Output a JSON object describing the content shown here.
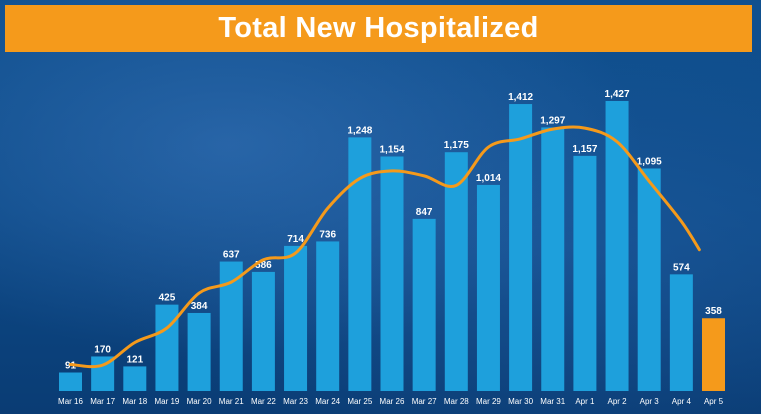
{
  "colors": {
    "banner": "#f59a1b",
    "bar": "#1ea0dc",
    "highlight_bar": "#f59a1b",
    "trend_line": "#f59a1b",
    "text": "#ffffff"
  },
  "chart_data": {
    "type": "bar",
    "title": "Total New Hospitalized",
    "categories": [
      "Mar 16",
      "Mar 17",
      "Mar 18",
      "Mar 19",
      "Mar 20",
      "Mar 21",
      "Mar 22",
      "Mar 23",
      "Mar 24",
      "Mar 25",
      "Mar 26",
      "Mar 27",
      "Mar 28",
      "Mar 29",
      "Mar 30",
      "Mar 31",
      "Apr 1",
      "Apr 2",
      "Apr 3",
      "Apr 4",
      "Apr 5"
    ],
    "values": [
      91,
      170,
      121,
      425,
      384,
      637,
      586,
      714,
      736,
      1248,
      1154,
      847,
      1175,
      1014,
      1412,
      1297,
      1157,
      1427,
      1095,
      574,
      358
    ],
    "value_labels": [
      "91",
      "170",
      "121",
      "425",
      "384",
      "637",
      "586",
      "714",
      "736",
      "1,248",
      "1,154",
      "847",
      "1,175",
      "1,014",
      "1,412",
      "1,297",
      "1,157",
      "1,427",
      "1,095",
      "574",
      "358"
    ],
    "highlight_index": 20,
    "trend_line": true,
    "ylim": [
      0,
      1427
    ],
    "grid": false,
    "legend": "none"
  }
}
